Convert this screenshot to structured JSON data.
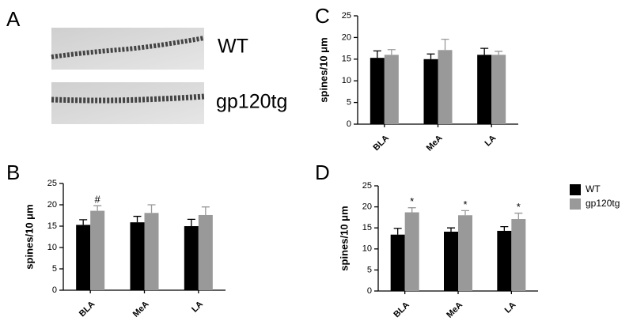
{
  "panel_a": {
    "label": "A",
    "images": [
      "WT",
      "gp120tg"
    ]
  },
  "chart_data": [
    {
      "type": "bar",
      "panel": "B",
      "ylabel": "spines/10 μm",
      "categories": [
        "BLA",
        "MeA",
        "LA"
      ],
      "series": [
        {
          "name": "WT",
          "color": "#000000",
          "values": [
            15.3,
            15.9,
            15.0
          ],
          "errors": [
            1.2,
            1.4,
            1.6
          ],
          "annotations": [
            null,
            null,
            null
          ]
        },
        {
          "name": "gp120tg",
          "color": "#999999",
          "values": [
            18.6,
            18.1,
            17.6
          ],
          "errors": [
            1.2,
            1.9,
            1.9
          ],
          "annotations": [
            "#",
            null,
            null
          ]
        }
      ],
      "ylim": [
        0,
        25
      ],
      "yticks": [
        0,
        5,
        10,
        15,
        20,
        25
      ]
    },
    {
      "type": "bar",
      "panel": "C",
      "ylabel": "spines/10 μm",
      "categories": [
        "BLA",
        "MeA",
        "LA"
      ],
      "series": [
        {
          "name": "WT",
          "color": "#000000",
          "values": [
            15.3,
            15.0,
            16.0
          ],
          "errors": [
            1.6,
            1.2,
            1.5
          ],
          "annotations": [
            null,
            null,
            null
          ]
        },
        {
          "name": "gp120tg",
          "color": "#999999",
          "values": [
            16.0,
            17.1,
            16.0
          ],
          "errors": [
            1.2,
            2.5,
            0.8
          ],
          "annotations": [
            null,
            null,
            null
          ]
        }
      ],
      "ylim": [
        0,
        25
      ],
      "yticks": [
        0,
        5,
        10,
        15,
        20,
        25
      ]
    },
    {
      "type": "bar",
      "panel": "D",
      "ylabel": "spines/10 μm",
      "categories": [
        "BLA",
        "MeA",
        "LA"
      ],
      "series": [
        {
          "name": "WT",
          "color": "#000000",
          "values": [
            13.4,
            14.1,
            14.3
          ],
          "errors": [
            1.5,
            0.9,
            1.0
          ],
          "annotations": [
            null,
            null,
            null
          ]
        },
        {
          "name": "gp120tg",
          "color": "#999999",
          "values": [
            18.7,
            18.0,
            17.1
          ],
          "errors": [
            1.1,
            1.1,
            1.4
          ],
          "annotations": [
            "*",
            "*",
            "*"
          ]
        }
      ],
      "ylim": [
        0,
        25
      ],
      "yticks": [
        0,
        5,
        10,
        15,
        20,
        25
      ],
      "legend": "right"
    }
  ]
}
